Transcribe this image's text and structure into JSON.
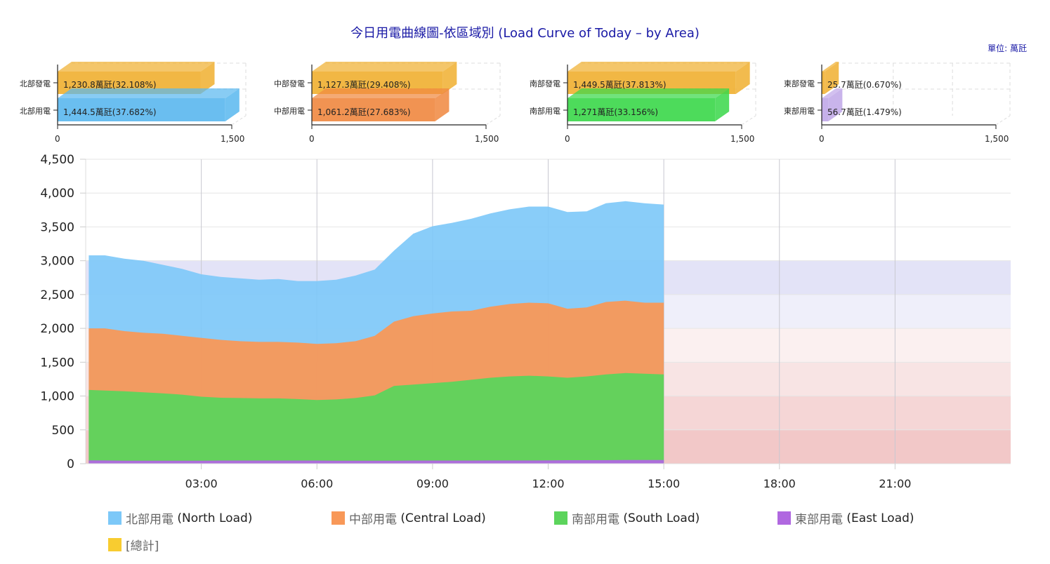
{
  "title": "今日用電曲線圖-依區域別 (Load Curve of Today – by Area)",
  "unit_label": "單位: 萬瓩",
  "colors": {
    "generation": "#f0b030",
    "north": "#7cc8f8",
    "central": "#f89858",
    "south": "#5cd45c",
    "east": "#b068e0",
    "total": "#f8cc30",
    "bar_north": "#5ab8ef",
    "bar_central": "#f08840",
    "bar_south": "#3ad84a",
    "bar_east": "#c0a8e8",
    "band_1": "#f2c8c8",
    "band_2": "#f5d6d6",
    "band_3": "#f8e4e4",
    "band_4": "#fbf0f0",
    "band_5": "#efeffa",
    "band_6": "#e3e3f7",
    "title": "#1a1aa6"
  },
  "chart_data": [
    {
      "type": "bar",
      "name": "north-summary",
      "categories": [
        "北部發電",
        "北部用電"
      ],
      "values": [
        1230.8,
        1444.5
      ],
      "labels": [
        "1,230.8萬瓩(32.108%)",
        "1,444.5萬瓩(37.682%)"
      ],
      "xlim": [
        0,
        1500
      ],
      "ticks": [
        "0",
        "1,500"
      ]
    },
    {
      "type": "bar",
      "name": "central-summary",
      "categories": [
        "中部發電",
        "中部用電"
      ],
      "values": [
        1127.3,
        1061.2
      ],
      "labels": [
        "1,127.3萬瓩(29.408%)",
        "1,061.2萬瓩(27.683%)"
      ],
      "xlim": [
        0,
        1500
      ],
      "ticks": [
        "0",
        "1,500"
      ]
    },
    {
      "type": "bar",
      "name": "south-summary",
      "categories": [
        "南部發電",
        "南部用電"
      ],
      "values": [
        1449.5,
        1271
      ],
      "labels": [
        "1,449.5萬瓩(37.813%)",
        "1,271萬瓩(33.156%)"
      ],
      "xlim": [
        0,
        1500
      ],
      "ticks": [
        "0",
        "1,500"
      ]
    },
    {
      "type": "bar",
      "name": "east-summary",
      "categories": [
        "東部發電",
        "東部用電"
      ],
      "values": [
        25.7,
        56.7
      ],
      "labels": [
        "25.7萬瓩(0.670%)",
        "56.7萬瓩(1.479%)"
      ],
      "xlim": [
        0,
        1500
      ],
      "ticks": [
        "0",
        "1,500"
      ]
    },
    {
      "type": "area",
      "name": "load-curve",
      "stacked": true,
      "xlim": [
        0,
        24
      ],
      "ylim": [
        0,
        4500
      ],
      "x_unit": "hours",
      "x": [
        0,
        0.5,
        1,
        1.5,
        2,
        2.5,
        3,
        3.5,
        4,
        4.5,
        5,
        5.5,
        6,
        6.5,
        7,
        7.5,
        8,
        8.5,
        9,
        9.5,
        10,
        10.5,
        11,
        11.5,
        12,
        12.5,
        13,
        13.5,
        14,
        14.5,
        15
      ],
      "series": [
        {
          "name": "東部用電 (East Load)",
          "key": "east",
          "values": [
            50,
            48,
            45,
            45,
            45,
            45,
            45,
            47,
            47,
            47,
            47,
            47,
            47,
            45,
            45,
            45,
            45,
            47,
            47,
            47,
            47,
            48,
            48,
            48,
            50,
            52,
            52,
            52,
            55,
            55,
            55
          ]
        },
        {
          "name": "南部用電 (South Load)",
          "key": "south",
          "values": [
            1040,
            1032,
            1025,
            1010,
            995,
            975,
            945,
            928,
            923,
            918,
            918,
            908,
            893,
            905,
            925,
            965,
            1105,
            1123,
            1143,
            1163,
            1193,
            1222,
            1242,
            1252,
            1240,
            1218,
            1238,
            1268,
            1285,
            1275,
            1265
          ]
        },
        {
          "name": "中部用電 (Central Load)",
          "key": "central",
          "values": [
            910,
            920,
            890,
            880,
            880,
            870,
            870,
            855,
            840,
            835,
            835,
            835,
            830,
            830,
            840,
            880,
            950,
            1010,
            1030,
            1040,
            1020,
            1050,
            1070,
            1080,
            1080,
            1020,
            1020,
            1070,
            1070,
            1050,
            1060
          ]
        },
        {
          "name": "北部用電 (North Load)",
          "key": "north",
          "values": [
            1080,
            1080,
            1070,
            1065,
            1020,
            990,
            940,
            930,
            930,
            920,
            930,
            910,
            930,
            940,
            970,
            980,
            1050,
            1220,
            1290,
            1310,
            1360,
            1380,
            1400,
            1420,
            1430,
            1430,
            1420,
            1460,
            1470,
            1470,
            1450
          ]
        }
      ],
      "bands": [
        {
          "from": 0,
          "to": 500
        },
        {
          "from": 500,
          "to": 1000
        },
        {
          "from": 1000,
          "to": 1500
        },
        {
          "from": 1500,
          "to": 2000
        },
        {
          "from": 2000,
          "to": 2500
        },
        {
          "from": 2500,
          "to": 3000
        }
      ],
      "yticks": [
        "0",
        "500",
        "1,000",
        "1,500",
        "2,000",
        "2,500",
        "3,000",
        "3,500",
        "4,000",
        "4,500"
      ],
      "xticks": [
        "03:00",
        "06:00",
        "09:00",
        "12:00",
        "15:00",
        "18:00",
        "21:00"
      ],
      "grid": true,
      "legend_position": "bottom"
    }
  ],
  "legend": [
    {
      "zh": "北部用電",
      "en": "(North Load)",
      "key": "north"
    },
    {
      "zh": "中部用電",
      "en": "(Central Load)",
      "key": "central"
    },
    {
      "zh": "南部用電",
      "en": "(South Load)",
      "key": "south"
    },
    {
      "zh": "東部用電",
      "en": "(East Load)",
      "key": "east"
    },
    {
      "zh": "[總計]",
      "en": "",
      "key": "total"
    }
  ]
}
